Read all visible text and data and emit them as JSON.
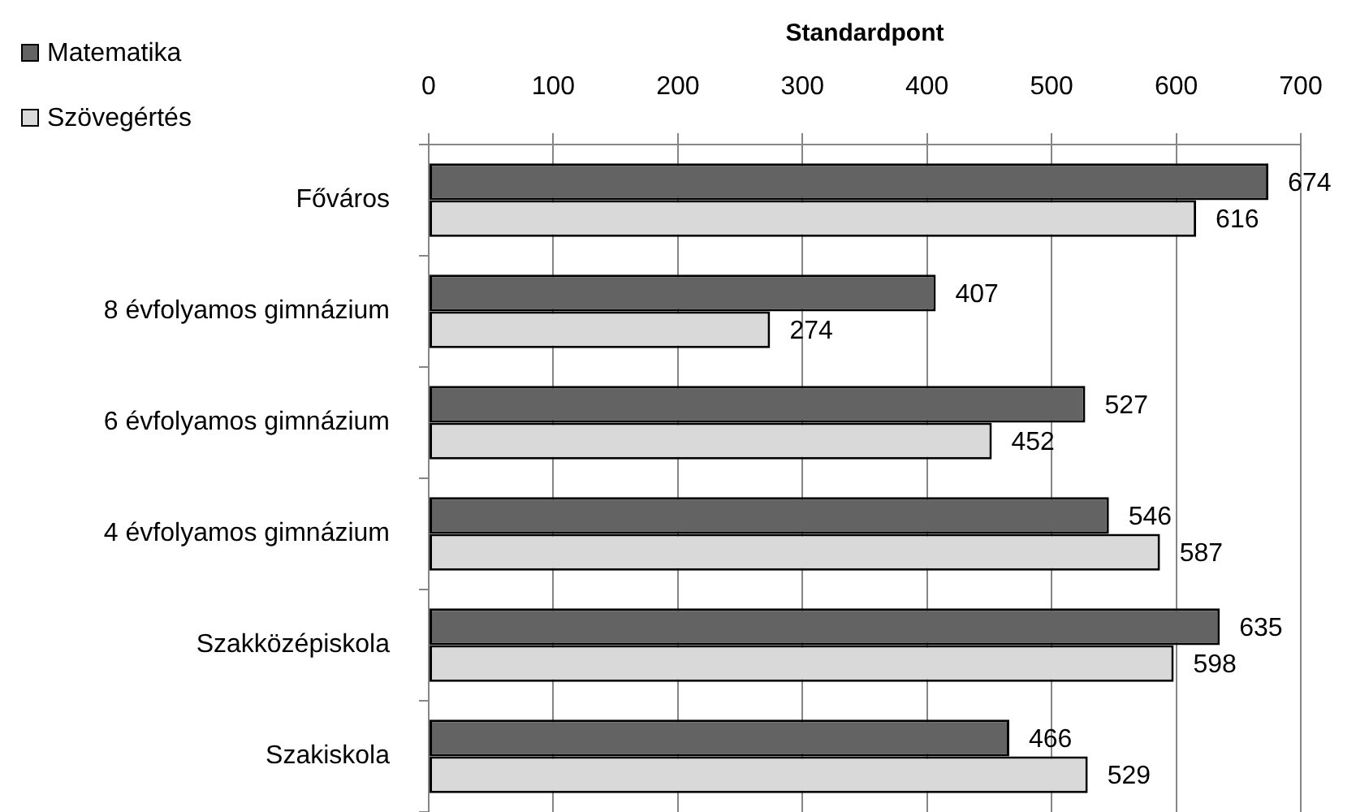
{
  "chart_data": {
    "type": "bar",
    "orientation": "horizontal",
    "xlabel": "Standardpont",
    "categories": [
      "Főváros",
      "8 évfolyamos gimnázium",
      "6 évfolyamos gimnázium",
      "4 évfolyamos gimnázium",
      "Szakközépiskola",
      "Szakiskola"
    ],
    "series": [
      {
        "name": "Matematika",
        "color": "#636363",
        "values": [
          674,
          407,
          527,
          546,
          635,
          466
        ]
      },
      {
        "name": "Szövegértés",
        "color": "#d9d9d9",
        "values": [
          616,
          274,
          452,
          587,
          598,
          529
        ]
      }
    ],
    "xlim": [
      0,
      700
    ],
    "xticks": [
      0,
      100,
      200,
      300,
      400,
      500,
      600,
      700
    ],
    "grid": "x",
    "legend": "top left",
    "data_labels": true
  }
}
